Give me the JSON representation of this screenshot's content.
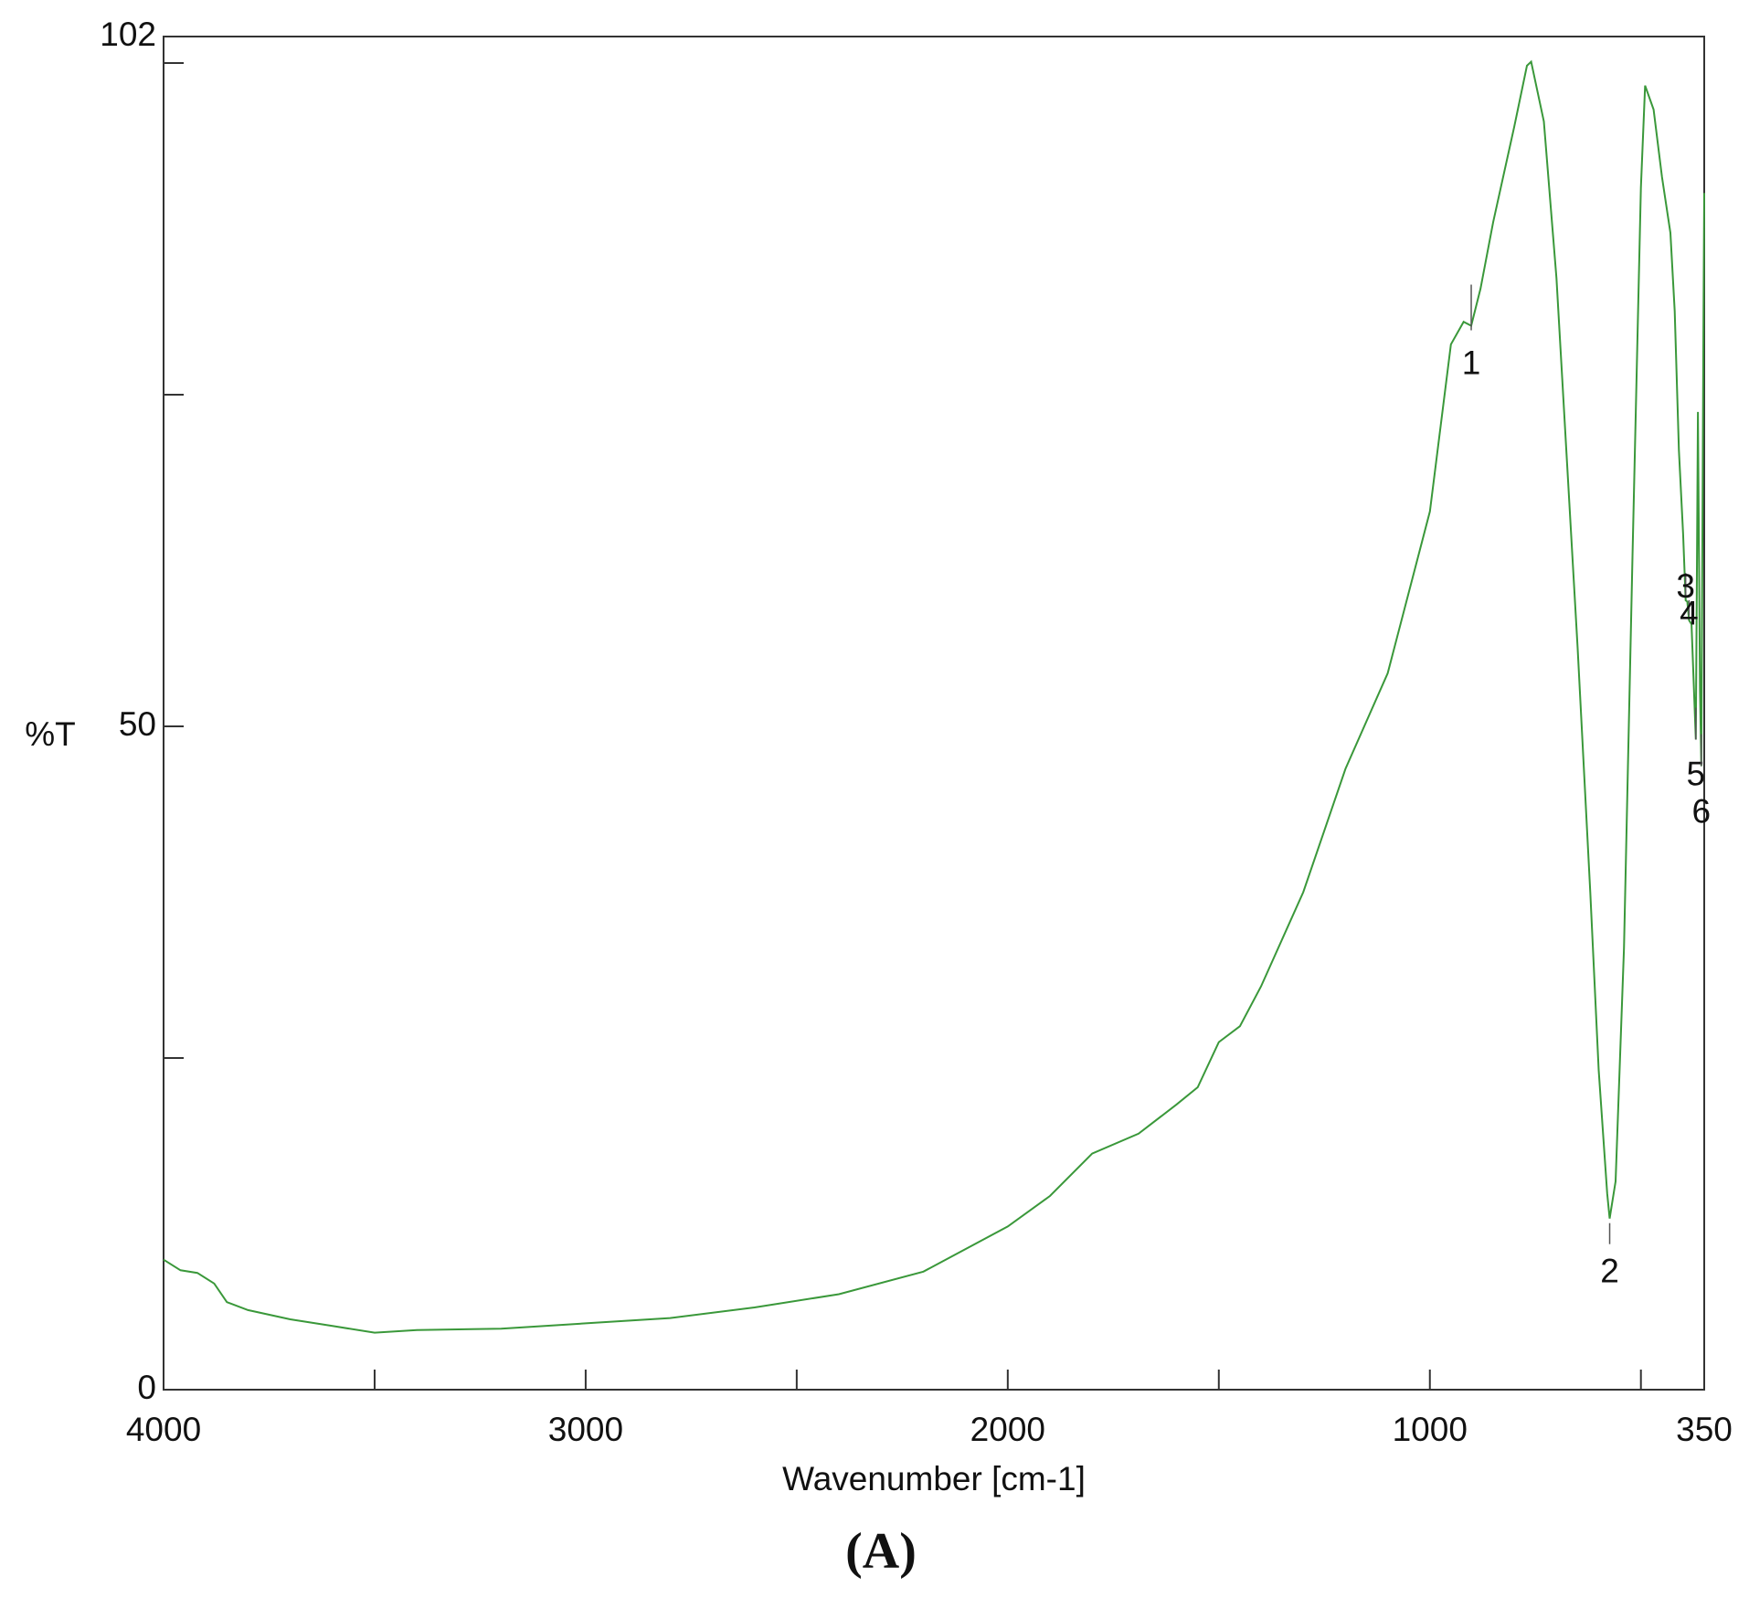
{
  "chart_data": {
    "type": "line",
    "xlabel": "Wavenumber [cm-1]",
    "ylabel": "%T",
    "caption": "(A)",
    "xlim": [
      4000,
      350
    ],
    "xticks": [
      4000,
      3000,
      2000,
      1000,
      350
    ],
    "xminor": [
      3500,
      2500,
      1500,
      500
    ],
    "ylim": [
      0,
      102
    ],
    "yticks": [
      0,
      50,
      102
    ],
    "yminor": [
      25,
      75,
      100
    ],
    "grid": false,
    "series": [
      {
        "color": "#3a983a",
        "x": [
          4000,
          3960,
          3920,
          3880,
          3850,
          3800,
          3700,
          3600,
          3500,
          3400,
          3200,
          3000,
          2800,
          2600,
          2400,
          2200,
          2000,
          1900,
          1800,
          1690,
          1600,
          1550,
          1500,
          1450,
          1400,
          1300,
          1200,
          1100,
          1000,
          950,
          920,
          902,
          880,
          850,
          800,
          770,
          760,
          730,
          700,
          650,
          620,
          600,
          580,
          574,
          560,
          540,
          520,
          500,
          490,
          470,
          450,
          430,
          420,
          410,
          400,
          394,
          390,
          386,
          380,
          370,
          367,
          365,
          360,
          357,
          352,
          350
        ],
        "values": [
          9.8,
          9.0,
          8.8,
          8.0,
          6.6,
          6.0,
          5.3,
          4.8,
          4.3,
          4.5,
          4.6,
          5.0,
          5.4,
          6.2,
          7.2,
          8.9,
          12.3,
          14.6,
          17.8,
          19.3,
          21.5,
          22.8,
          26.2,
          27.4,
          30.4,
          37.5,
          46.8,
          54.0,
          66.2,
          78.8,
          80.5,
          80.2,
          83.0,
          88.0,
          95.2,
          99.8,
          100.1,
          95.6,
          83.8,
          56.0,
          37.5,
          24.1,
          14.8,
          12.9,
          15.7,
          33.3,
          62.8,
          90.6,
          98.3,
          96.5,
          91.4,
          87.2,
          81.3,
          70.8,
          64.5,
          59.5,
          59.4,
          58.0,
          57.7,
          49.0,
          62.8,
          73.7,
          52.7,
          47.0,
          79.6,
          90.2
        ]
      }
    ],
    "peaks": [
      {
        "label": "1",
        "x": 902,
        "y": 80.2
      },
      {
        "label": "2",
        "x": 574,
        "y": 12.9
      },
      {
        "label": "3",
        "x": 394,
        "y": 59.5
      },
      {
        "label": "4",
        "x": 386,
        "y": 58.0
      },
      {
        "label": "5",
        "x": 370,
        "y": 49.0
      },
      {
        "label": "6",
        "x": 357,
        "y": 47.0
      }
    ]
  }
}
